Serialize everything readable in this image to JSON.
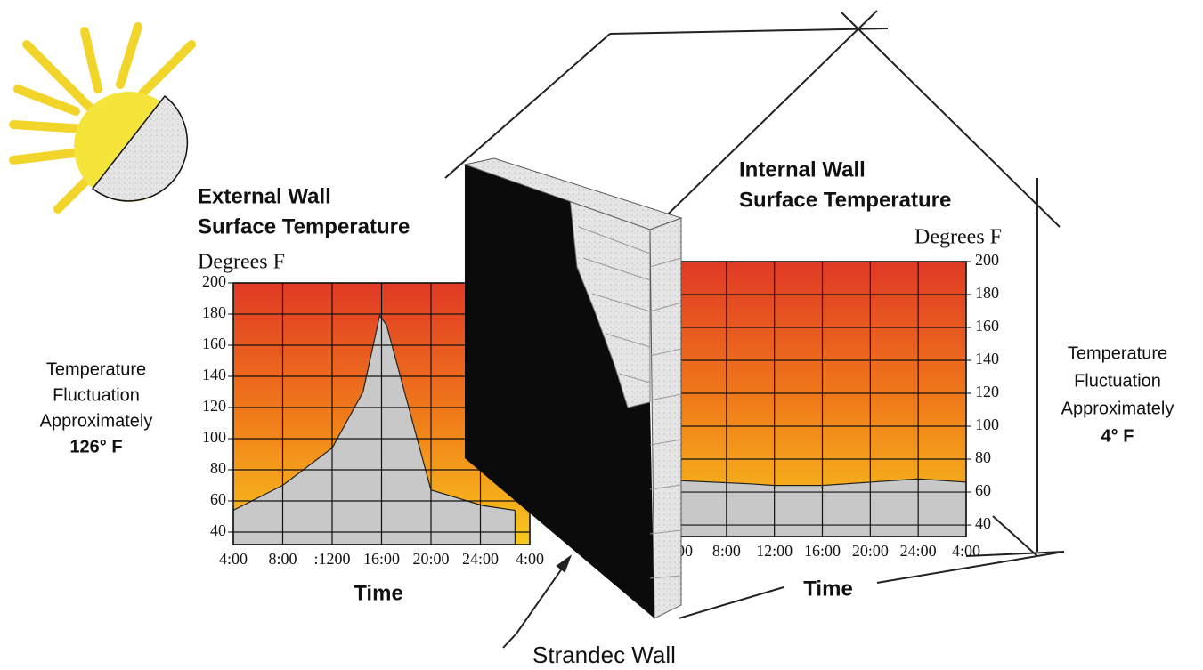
{
  "chart_data": [
    {
      "type": "area",
      "title": [
        "External Wall",
        "Surface Temperature"
      ],
      "y_label": "Degrees F",
      "x_label": "Time",
      "annotation": [
        "Temperature",
        "Fluctuation",
        "Approximately",
        "126° F"
      ],
      "x": [
        4,
        8,
        12,
        14.5,
        15.85,
        16.4,
        20,
        24.2,
        26.8
      ],
      "series": [
        {
          "color": "#c8c8c8",
          "values": [
            54,
            70,
            94,
            130,
            179,
            173,
            67,
            57,
            54
          ]
        }
      ],
      "xlim": [
        4,
        28
      ],
      "ylim": [
        32,
        200
      ],
      "xticks": [
        {
          "value": 4,
          "label": "4:00"
        },
        {
          "value": 8,
          "label": "8:00"
        },
        {
          "value": 12,
          "label": ":1200"
        },
        {
          "value": 16,
          "label": "16:00"
        },
        {
          "value": 20,
          "label": "20:00"
        },
        {
          "value": 24,
          "label": "24:00"
        },
        {
          "value": 28,
          "label": "4:00"
        }
      ],
      "yticks": [
        40,
        60,
        80,
        100,
        120,
        140,
        160,
        180,
        200
      ],
      "grid": true
    },
    {
      "type": "area",
      "title": [
        "Internal Wall",
        "Surface Temperature"
      ],
      "y_label": "Degrees F",
      "x_label": "Time",
      "annotation": [
        "Temperature",
        "Fluctuation",
        "Approximately",
        "4° F"
      ],
      "x": [
        4,
        10,
        12,
        16,
        20,
        24,
        28
      ],
      "series": [
        {
          "color": "#c8c8c8",
          "values": [
            67,
            65,
            64,
            64,
            66,
            68,
            66
          ]
        }
      ],
      "xlim": [
        4,
        28
      ],
      "ylim": [
        33,
        200
      ],
      "xticks": [
        {
          "value": 4,
          "label": "4:00"
        },
        {
          "value": 8,
          "label": "8:00"
        },
        {
          "value": 12,
          "label": "12:00"
        },
        {
          "value": 16,
          "label": "16:00"
        },
        {
          "value": 20,
          "label": "20:00"
        },
        {
          "value": 24,
          "label": "24:00"
        },
        {
          "value": 28,
          "label": "4:00"
        }
      ],
      "yticks": [
        40,
        60,
        80,
        100,
        120,
        140,
        160,
        180,
        200
      ],
      "grid": true
    }
  ],
  "wall_label": "Strandec Wall"
}
